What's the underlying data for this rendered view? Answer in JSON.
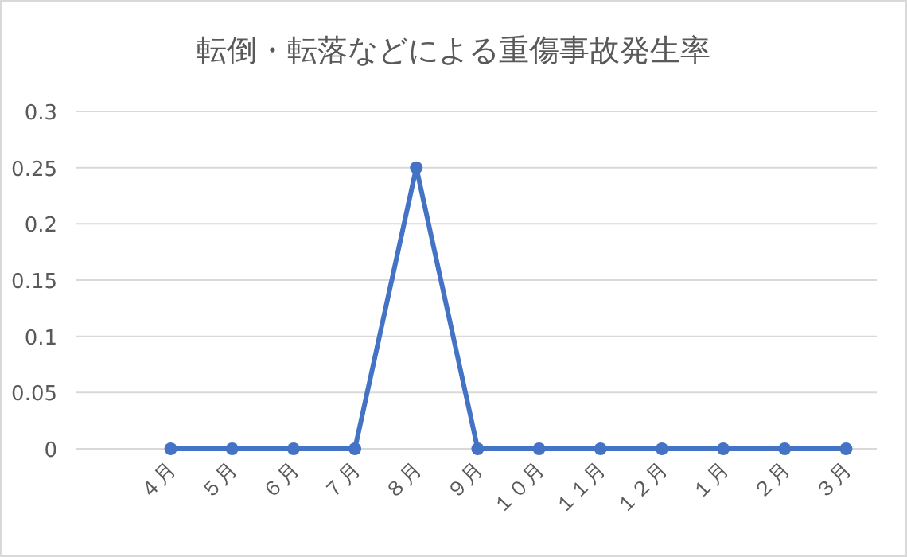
{
  "chart_data": {
    "type": "line",
    "title": "転倒・転落などによる重傷事故発生率",
    "categories": [
      "４月",
      "５月",
      "６月",
      "７月",
      "８月",
      "９月",
      "１０月",
      "１１月",
      "１２月",
      "１月",
      "２月",
      "３月"
    ],
    "values": [
      0,
      0,
      0,
      0,
      0.25,
      0,
      0,
      0,
      0,
      0,
      0,
      0
    ],
    "color": "#4472c4",
    "marker": "circle",
    "line_style": "solid",
    "ylim": [
      0,
      0.3
    ],
    "yticks": [
      0,
      0.05,
      0.1,
      0.15,
      0.2,
      0.25,
      0.3
    ],
    "grid": "y"
  }
}
